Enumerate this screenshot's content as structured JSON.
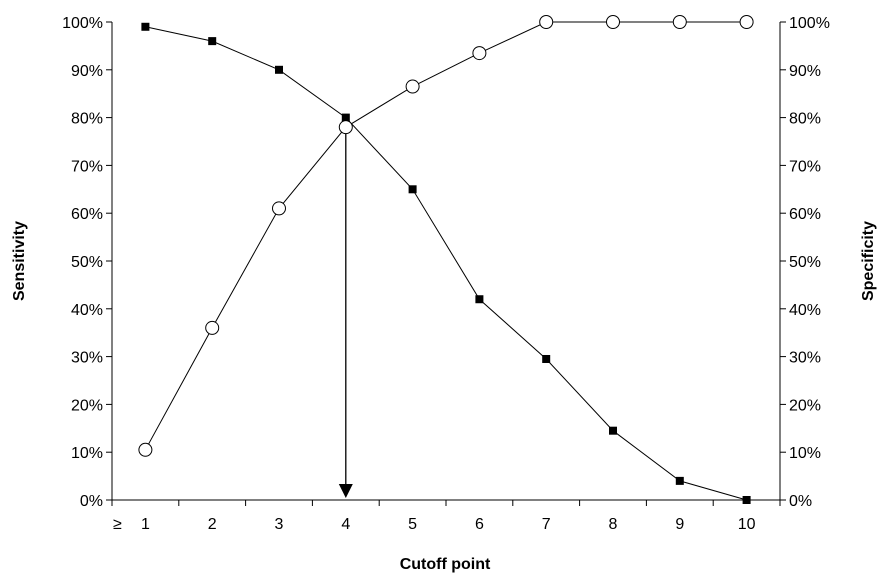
{
  "chart_data": {
    "type": "line",
    "x_label_prefix": "≥",
    "x": [
      1,
      2,
      3,
      4,
      5,
      6,
      7,
      8,
      9,
      10
    ],
    "xlabel": "Cutoff point",
    "ylabel_left": "Sensitivity",
    "ylabel_right": "Specificity",
    "ylim": [
      0,
      100
    ],
    "yticks": [
      "0%",
      "10%",
      "20%",
      "30%",
      "40%",
      "50%",
      "60%",
      "70%",
      "80%",
      "90%",
      "100%"
    ],
    "grid": false,
    "legend": "none",
    "series": [
      {
        "values": [
          99,
          96,
          90,
          80,
          65,
          42,
          29.5,
          14.5,
          4,
          0
        ],
        "marker": "filled-square",
        "axis": "left",
        "color": "#000000"
      },
      {
        "values": [
          10.5,
          36,
          61,
          78,
          86.5,
          93.5,
          100,
          100,
          100,
          100
        ],
        "marker": "open-circle",
        "axis": "right",
        "color": "#000000"
      }
    ],
    "annotations": [
      {
        "type": "arrow",
        "from": [
          4,
          80
        ],
        "to": [
          4,
          0
        ],
        "direction": "down"
      }
    ]
  }
}
